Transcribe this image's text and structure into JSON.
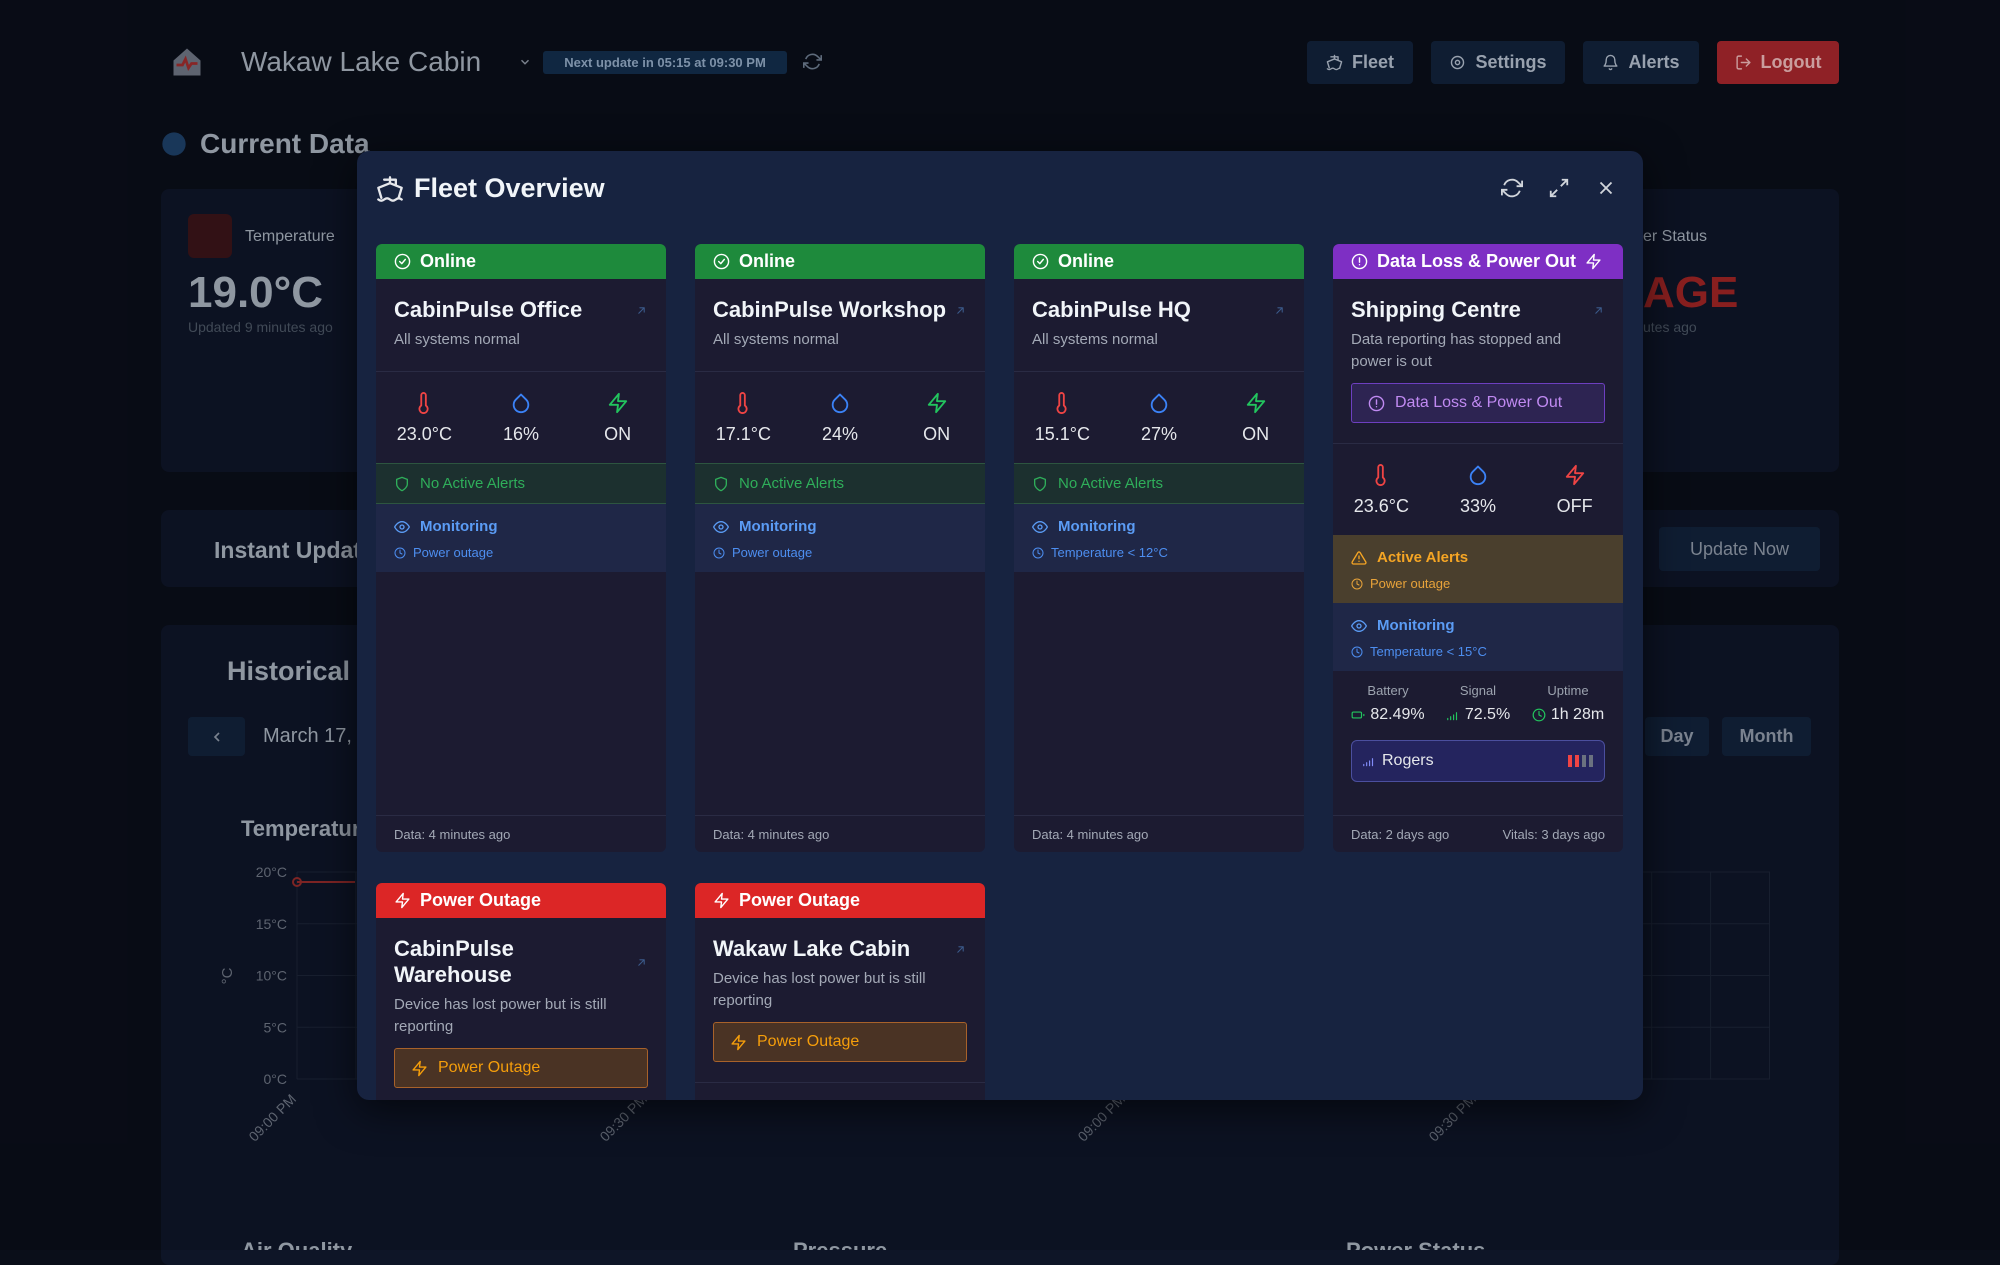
{
  "header": {
    "title": "Wakaw Lake Cabin",
    "next_update": "Next update in 05:15 at 09:30 PM",
    "nav": [
      "Fleet",
      "Settings",
      "Alerts",
      "Logout"
    ]
  },
  "dashboard": {
    "current_data": "Current Data",
    "temperature": {
      "label": "Temperature",
      "value": "19.0°C",
      "updated": "Updated 9 minutes ago"
    },
    "power_status": {
      "label": "er Status",
      "value": "AGE",
      "updated": "utes ago"
    },
    "instant_update": "Instant Updat",
    "update_now": "Update Now",
    "historical": "Historical I",
    "date": "March 17,",
    "ranges": [
      "Day",
      "Month"
    ],
    "chart": {
      "title": "Temperatur",
      "y_label": "°C",
      "yticks": [
        "20°C",
        "15°C",
        "10°C",
        "5°C",
        "0°C"
      ],
      "xticks": [
        "09:00 PM",
        "09:30 PM",
        "09:00 PM",
        "09:30 PM"
      ]
    },
    "sections": [
      "Air Quality",
      "Pressure",
      "Power Status"
    ]
  },
  "modal": {
    "title": "Fleet Overview",
    "cards": [
      {
        "status": {
          "label": "Online",
          "color": "#1e8a3c"
        },
        "name": "CabinPulse Office",
        "description": "All systems normal",
        "metrics": [
          "23.0°C",
          "16%",
          "ON"
        ],
        "alerts": {
          "title": "No Active Alerts"
        },
        "monitoring": {
          "title": "Monitoring",
          "items": [
            "Power outage"
          ]
        },
        "footer": [
          "Data: 4 minutes ago"
        ]
      },
      {
        "status": {
          "label": "Online",
          "color": "#1e8a3c"
        },
        "name": "CabinPulse Workshop",
        "description": "All systems normal",
        "metrics": [
          "17.1°C",
          "24%",
          "ON"
        ],
        "alerts": {
          "title": "No Active Alerts"
        },
        "monitoring": {
          "title": "Monitoring",
          "items": [
            "Power outage"
          ]
        },
        "footer": [
          "Data: 4 minutes ago"
        ]
      },
      {
        "status": {
          "label": "Online",
          "color": "#1e8a3c"
        },
        "name": "CabinPulse HQ",
        "description": "All systems normal",
        "metrics": [
          "15.1°C",
          "27%",
          "ON"
        ],
        "alerts": {
          "title": "No Active Alerts"
        },
        "monitoring": {
          "title": "Monitoring",
          "items": [
            "Temperature < 12°C"
          ]
        },
        "footer": [
          "Data: 4 minutes ago"
        ]
      },
      {
        "status": {
          "label": "Data Loss & Power Out",
          "color": "#7e2fc4"
        },
        "name": "Shipping Centre",
        "description": "Data reporting has stopped and power is out",
        "badge": "Data Loss & Power Out",
        "metrics": [
          "23.6°C",
          "33%",
          "OFF"
        ],
        "alerts": {
          "title": "Active Alerts",
          "items": [
            "Power outage"
          ]
        },
        "monitoring": {
          "title": "Monitoring",
          "items": [
            "Temperature < 15°C"
          ]
        },
        "vitals": [
          {
            "label": "Battery",
            "value": "82.49%"
          },
          {
            "label": "Signal",
            "value": "72.5%"
          },
          {
            "label": "Uptime",
            "value": "1h 28m"
          }
        ],
        "carrier": "Rogers",
        "footer": [
          "Data: 2 days ago",
          "Vitals: 3 days ago"
        ]
      },
      {
        "status": {
          "label": "Power Outage",
          "color": "#dc2626"
        },
        "name": "CabinPulse Warehouse",
        "description": "Device has lost power but is still reporting",
        "badge": "Power Outage"
      },
      {
        "status": {
          "label": "Power Outage",
          "color": "#dc2626"
        },
        "name": "Wakaw Lake Cabin",
        "description": "Device has lost power but is still reporting",
        "badge": "Power Outage"
      }
    ]
  }
}
